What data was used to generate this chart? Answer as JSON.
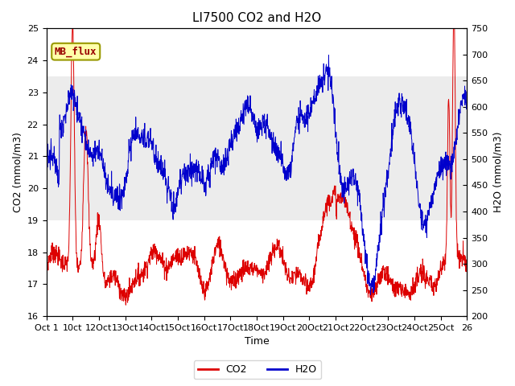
{
  "title": "LI7500 CO2 and H2O",
  "xlabel": "Time",
  "ylabel_left": "CO2 (mmol/m3)",
  "ylabel_right": "H2O (mmol/m3)",
  "co2_ylim": [
    16.0,
    25.0
  ],
  "h2o_ylim": [
    200,
    750
  ],
  "xtick_labels": [
    "Oct 1",
    "10ct",
    "12Oct",
    "13Oct",
    "14Oct",
    "15Oct",
    "16Oct",
    "17Oct",
    "18Oct",
    "19Oct",
    "20Oct",
    "21Oct",
    "22Oct",
    "23Oct",
    "24Oct",
    "25Oct",
    "26"
  ],
  "annotation_text": "MB_flux",
  "bg_band_co2": [
    19.0,
    23.5
  ],
  "legend_labels": [
    "CO2",
    "H2O"
  ],
  "co2_color": "#dd0000",
  "h2o_color": "#0000cc",
  "title_fontsize": 11,
  "axis_fontsize": 9,
  "tick_fontsize": 8,
  "legend_fontsize": 9,
  "figsize": [
    6.4,
    4.8
  ],
  "dpi": 100
}
